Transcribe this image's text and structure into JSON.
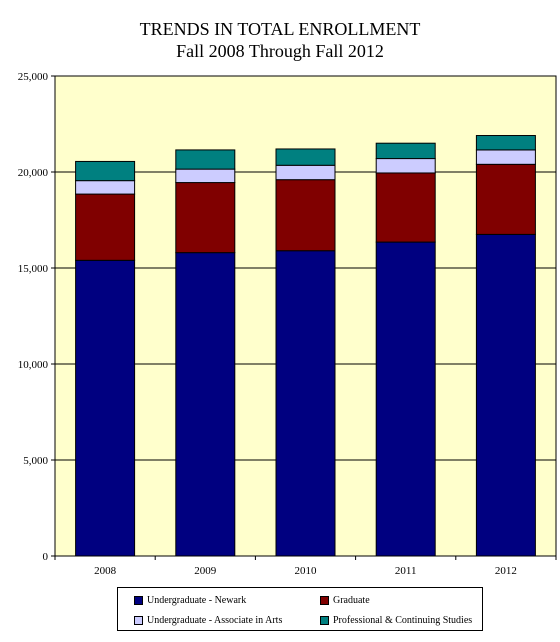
{
  "colors": {
    "plot_background": "#ffffcc",
    "grid": "#000000",
    "undergrad_newark": "#000080",
    "graduate": "#800000",
    "associate_arts": "#ccccff",
    "professional": "#008080"
  },
  "chart_data": {
    "type": "bar",
    "stacked": true,
    "title": "TRENDS IN TOTAL ENROLLMENT",
    "subtitle": "Fall 2008 Through Fall 2012",
    "categories": [
      "2008",
      "2009",
      "2010",
      "2011",
      "2012"
    ],
    "series": [
      {
        "name": "Undergraduate - Newark",
        "color": "#000080",
        "values": [
          15400,
          15800,
          15900,
          16350,
          16750
        ]
      },
      {
        "name": "Graduate",
        "color": "#800000",
        "values": [
          3450,
          3650,
          3700,
          3600,
          3650
        ]
      },
      {
        "name": "Undergraduate - Associate in Arts",
        "color": "#ccccff",
        "values": [
          700,
          700,
          750,
          750,
          750
        ]
      },
      {
        "name": "Professional & Continuing Studies",
        "color": "#008080",
        "values": [
          1000,
          1000,
          850,
          800,
          750
        ]
      }
    ],
    "ylim": [
      0,
      25000
    ],
    "yticks": [
      0,
      5000,
      10000,
      15000,
      20000,
      25000
    ],
    "ytick_labels": [
      "0",
      "5,000",
      "10,000",
      "15,000",
      "20,000",
      "25,000"
    ],
    "grid": true,
    "legend_position": "bottom"
  }
}
